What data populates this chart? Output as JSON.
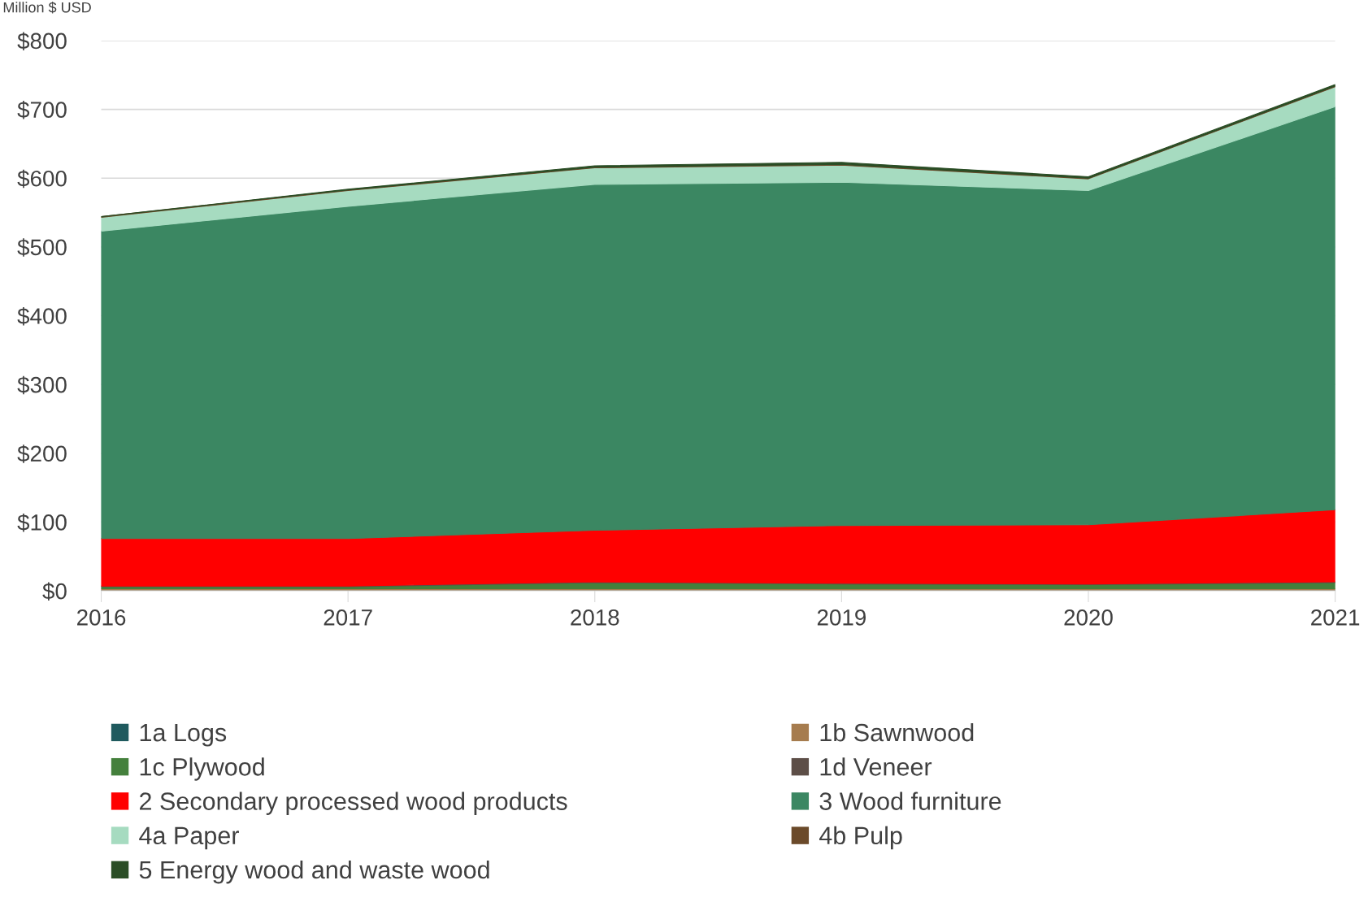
{
  "chart_data": {
    "type": "area",
    "stacked": true,
    "ylabel": "Million $ USD",
    "x": [
      2016,
      2017,
      2018,
      2019,
      2020,
      2021
    ],
    "xlim": [
      2016,
      2021
    ],
    "xticks": [
      2016,
      2017,
      2018,
      2019,
      2020,
      2021
    ],
    "ylim": [
      0,
      800
    ],
    "yticks": [
      {
        "value": 0,
        "label": "$0"
      },
      {
        "value": 100,
        "label": "$100"
      },
      {
        "value": 200,
        "label": "$200"
      },
      {
        "value": 300,
        "label": "$300"
      },
      {
        "value": 400,
        "label": "$400"
      },
      {
        "value": 500,
        "label": "$500"
      },
      {
        "value": 600,
        "label": "$600"
      },
      {
        "value": 700,
        "label": "$700"
      },
      {
        "value": 800,
        "label": "$800"
      }
    ],
    "grid": "y",
    "legend": "bottom",
    "series": [
      {
        "name": "1a Logs",
        "color": "#1f5a5e",
        "values": [
          1,
          1,
          1,
          1,
          1,
          1
        ]
      },
      {
        "name": "1b Sawnwood",
        "color": "#a67c4e",
        "values": [
          2,
          2,
          2,
          2,
          2,
          2
        ]
      },
      {
        "name": "1c Plywood",
        "color": "#44803c",
        "values": [
          3,
          3,
          9,
          7,
          6,
          9
        ]
      },
      {
        "name": "1d Veneer",
        "color": "#5d4e47",
        "values": [
          1,
          1,
          1,
          1,
          1,
          1
        ]
      },
      {
        "name": "2 Secondary processed wood products",
        "color": "#ff0000",
        "values": [
          69,
          69,
          75,
          84,
          86,
          105
        ]
      },
      {
        "name": "3 Wood furniture",
        "color": "#3b8762",
        "values": [
          447,
          483,
          503,
          499,
          486,
          586
        ]
      },
      {
        "name": "4a Paper",
        "color": "#a6dbc0",
        "values": [
          20,
          23,
          24,
          25,
          17,
          29
        ]
      },
      {
        "name": "4b Pulp",
        "color": "#6b4a2a",
        "values": [
          1,
          1,
          1,
          1,
          1,
          1
        ]
      },
      {
        "name": "5 Energy wood and waste wood",
        "color": "#2a4d25",
        "values": [
          0,
          1,
          2,
          3,
          2,
          2
        ]
      }
    ]
  }
}
